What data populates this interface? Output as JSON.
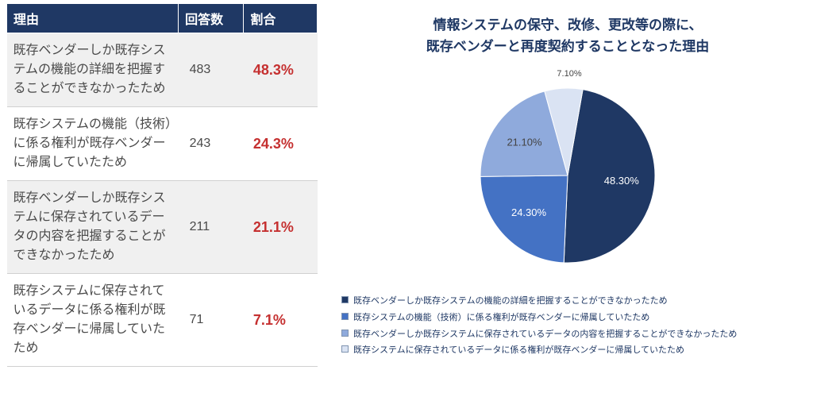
{
  "table": {
    "headers": [
      "理由",
      "回答数",
      "割合"
    ],
    "rows": [
      {
        "reason": "既存ベンダーしか既存システムの機能の詳細を把握することができなかったため",
        "count": "483",
        "pct": "48.3%"
      },
      {
        "reason": "既存システムの機能（技術）に係る権利が既存ベンダーに帰属していたため",
        "count": "243",
        "pct": "24.3%"
      },
      {
        "reason": "既存ベンダーしか既存システムに保存されているデータの内容を把握することができなかったため",
        "count": "211",
        "pct": "21.1%"
      },
      {
        "reason": "既存システムに保存されているデータに係る権利が既存ベンダーに帰属していたため",
        "count": "71",
        "pct": "7.1%"
      }
    ]
  },
  "chart": {
    "type": "pie",
    "title_line1": "情報システムの保守、改修、更改等の際に、",
    "title_line2": "既存ベンダーと再度契約することとなった理由",
    "slices": [
      {
        "label": "48.30%",
        "value": 48.3,
        "color": "#1f3864",
        "label_color": "#ffffff"
      },
      {
        "label": "24.30%",
        "value": 24.3,
        "color": "#4472c4",
        "label_color": "#ffffff"
      },
      {
        "label": "21.10%",
        "value": 21.1,
        "color": "#8faadc",
        "label_color": "#444444"
      },
      {
        "label": "7.10%",
        "value": 7.1,
        "color": "#dae3f3",
        "label_color": "#444444"
      }
    ],
    "legend_items": [
      {
        "color": "#1f3864",
        "text": "既存ベンダーしか既存システムの機能の詳細を把握することができなかったため"
      },
      {
        "color": "#4472c4",
        "text": "既存システムの機能（技術）に係る権利が既存ベンダーに帰属していたため"
      },
      {
        "color": "#8faadc",
        "text": "既存ベンダーしか既存システムに保存されているデータの内容を把握することができなかったため"
      },
      {
        "color": "#dae3f3",
        "text": "既存システムに保存されているデータに係る権利が既存ベンダーに帰属していたため"
      }
    ],
    "pie_radius": 110,
    "svg_size": 270,
    "start_angle_deg": 10
  }
}
